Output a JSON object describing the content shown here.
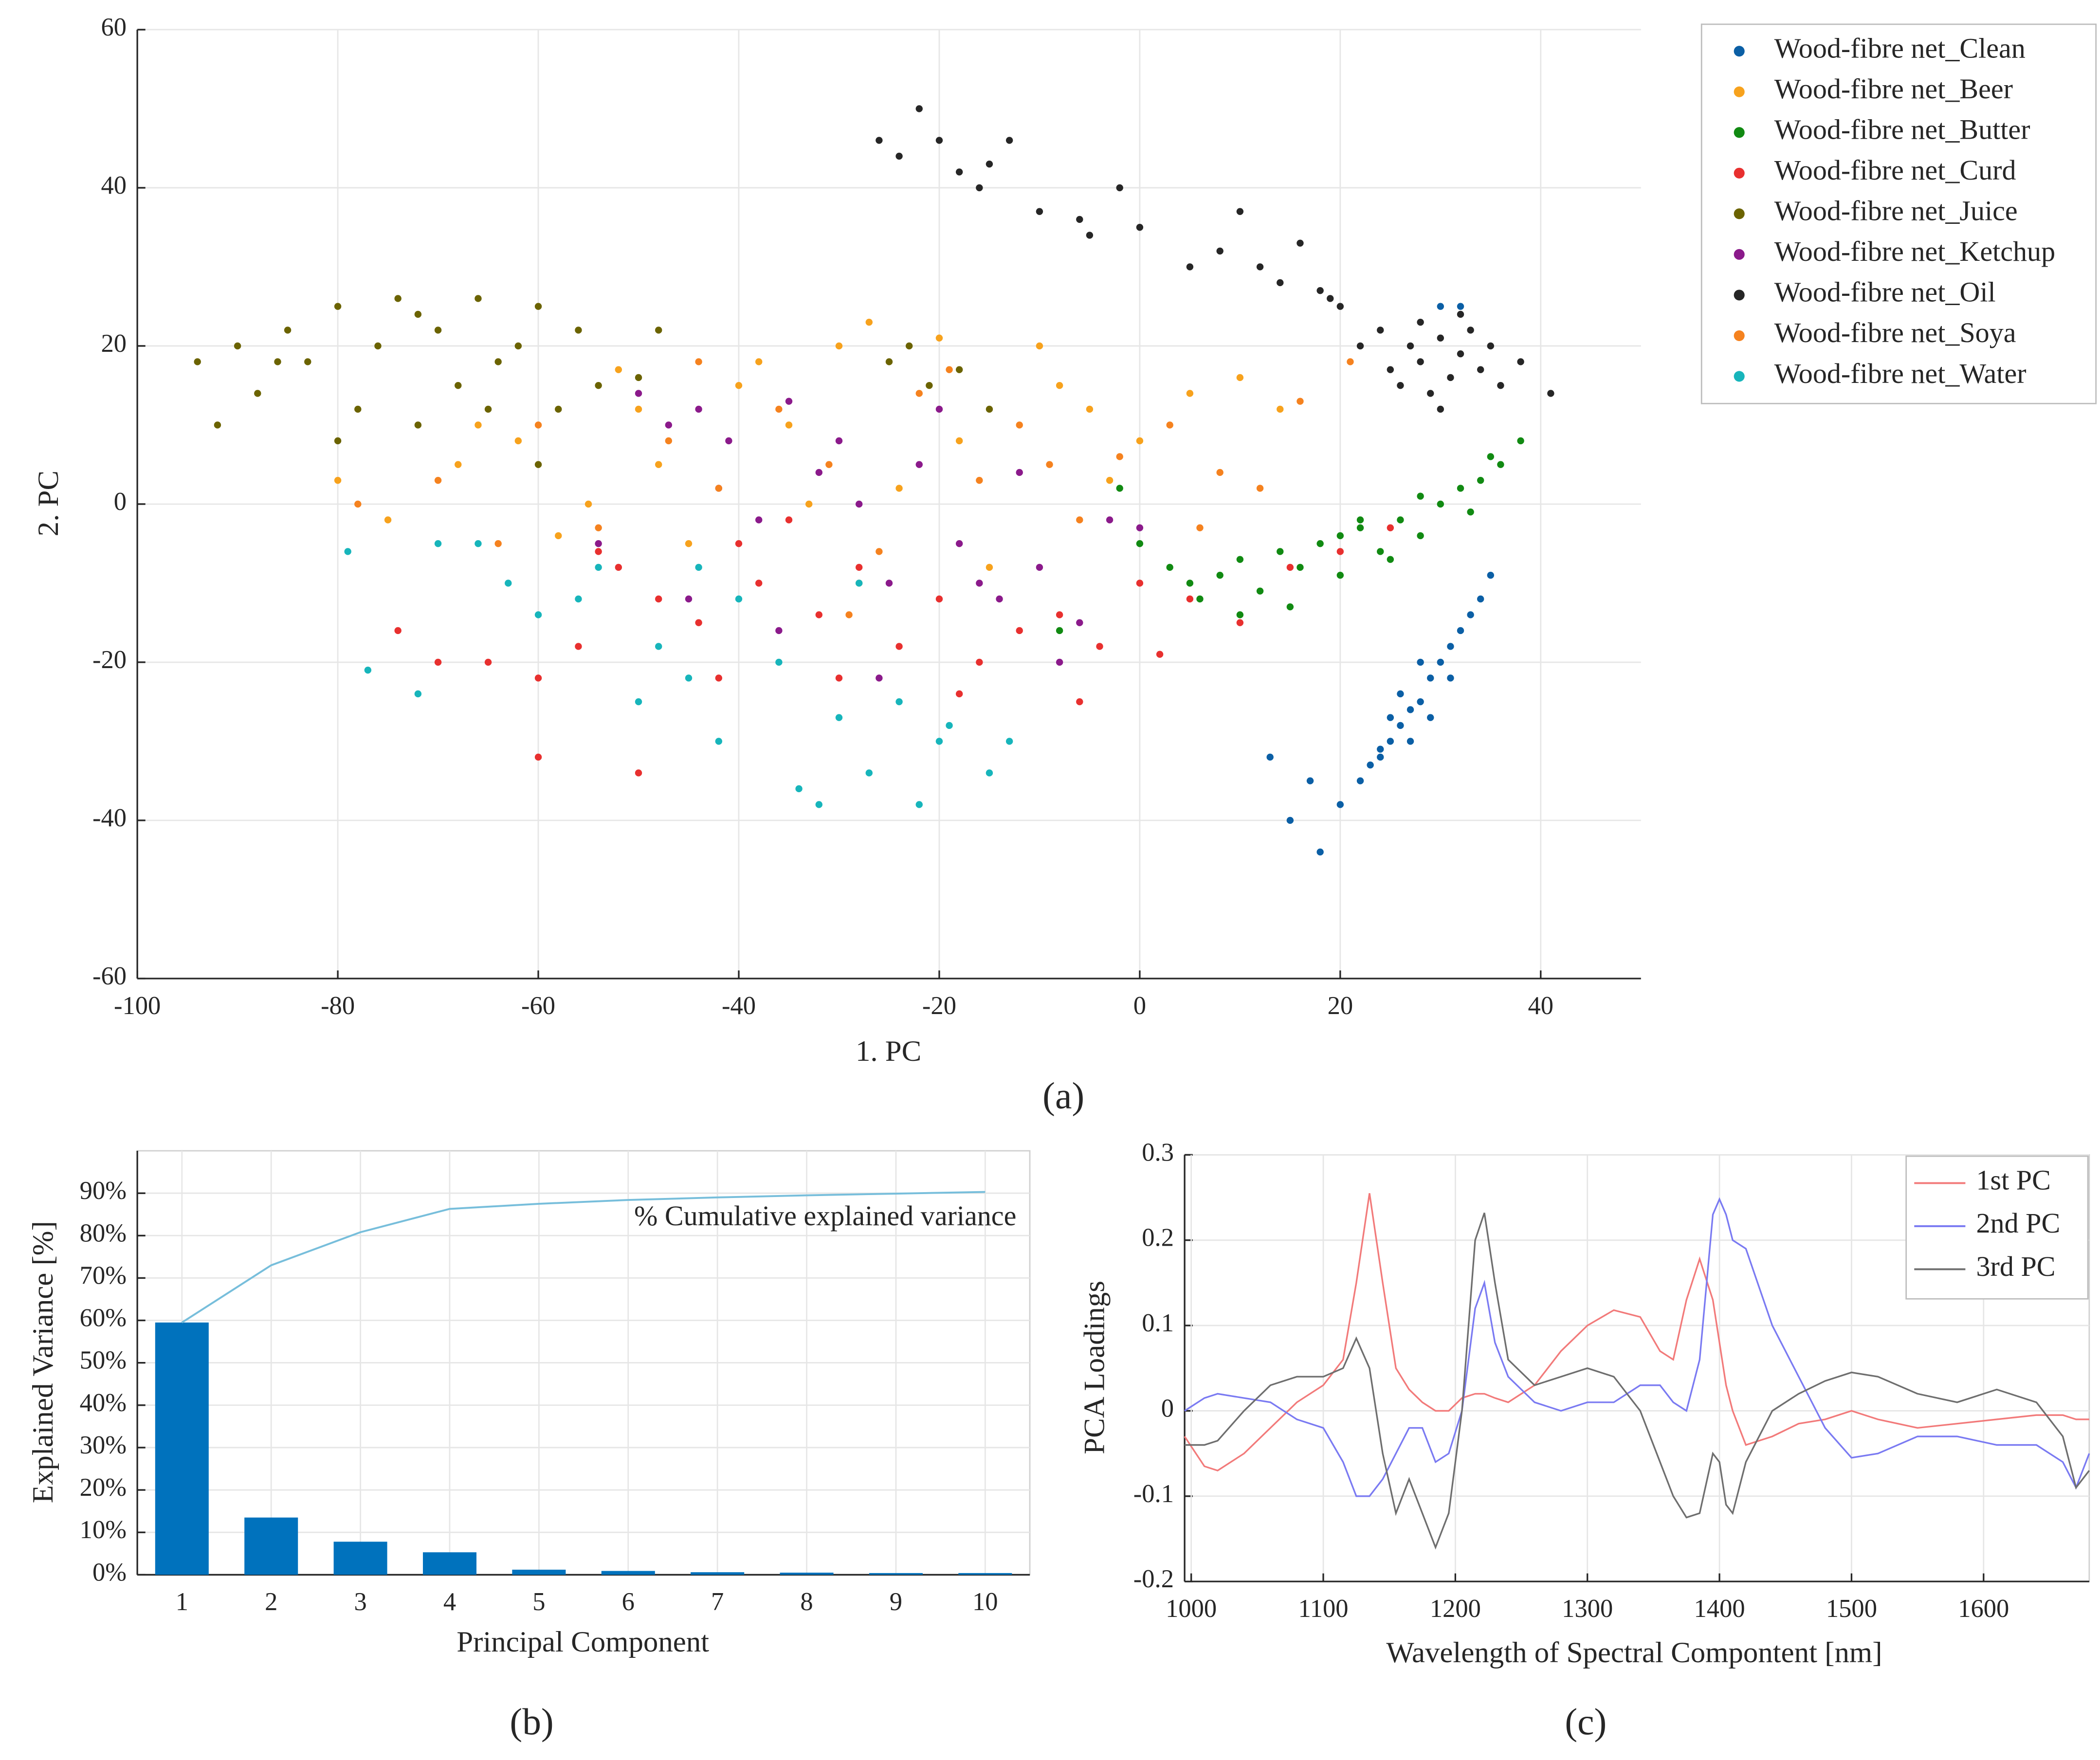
{
  "chart_data": [
    {
      "type": "scatter",
      "caption": "(a)",
      "x_label": "1. PC",
      "y_label": "2. PC",
      "xlim": [
        -100,
        50
      ],
      "ylim": [
        -60,
        60
      ],
      "xticks": [
        -100,
        -80,
        -60,
        -40,
        -20,
        0,
        20,
        40
      ],
      "yticks": [
        -60,
        -40,
        -20,
        0,
        20,
        40,
        60
      ],
      "grid": true,
      "legend": "outside upper right",
      "series": [
        {
          "name": "Wood-fibre net_Clean",
          "color": "#0b5fa5",
          "x": [
            22,
            24,
            25,
            26,
            27,
            28,
            29,
            30,
            31,
            32,
            33,
            34,
            35,
            27,
            29,
            31,
            26,
            24,
            15,
            13,
            18,
            20,
            17,
            30,
            32,
            23,
            28,
            25
          ],
          "values": [
            -35,
            -32,
            -30,
            -28,
            -26,
            -25,
            -22,
            -20,
            -18,
            -16,
            -14,
            -12,
            -9,
            -30,
            -27,
            -22,
            -24,
            -31,
            -40,
            -32,
            -44,
            -38,
            -35,
            25,
            25,
            -33,
            -20,
            -27
          ]
        },
        {
          "name": "Wood-fibre net_Beer",
          "color": "#f7a21d",
          "x": [
            -80,
            -75,
            -68,
            -62,
            -55,
            -50,
            -45,
            -40,
            -35,
            -30,
            -27,
            -24,
            -20,
            -15,
            -10,
            -5,
            0,
            5,
            10,
            14,
            -58,
            -48,
            -38,
            -28,
            -18,
            -8,
            -3,
            -66,
            -52,
            -33
          ],
          "values": [
            3,
            -2,
            5,
            8,
            0,
            12,
            -5,
            15,
            10,
            20,
            23,
            2,
            21,
            -8,
            20,
            12,
            8,
            14,
            16,
            12,
            -4,
            5,
            18,
            -10,
            8,
            15,
            3,
            10,
            17,
            0
          ]
        },
        {
          "name": "Wood-fibre net_Butter",
          "color": "#118a12",
          "x": [
            0,
            3,
            5,
            8,
            10,
            12,
            14,
            16,
            18,
            20,
            22,
            24,
            26,
            28,
            30,
            32,
            34,
            36,
            38,
            6,
            15,
            25,
            33,
            20,
            28,
            35,
            -2,
            -8,
            10,
            22
          ],
          "values": [
            -5,
            -8,
            -10,
            -9,
            -7,
            -11,
            -6,
            -8,
            -5,
            -4,
            -3,
            -6,
            -2,
            -4,
            0,
            2,
            3,
            5,
            8,
            -12,
            -13,
            -7,
            -1,
            -9,
            1,
            6,
            2,
            -16,
            -14,
            -2
          ]
        },
        {
          "name": "Wood-fibre net_Curd",
          "color": "#e8302f",
          "x": [
            -74,
            -70,
            -65,
            -60,
            -60,
            -56,
            -52,
            -50,
            -48,
            -44,
            -40,
            -38,
            -35,
            -32,
            -28,
            -24,
            -20,
            -16,
            -12,
            -8,
            -4,
            0,
            5,
            10,
            15,
            20,
            25,
            -42,
            -30,
            -18,
            -6,
            2,
            -54
          ],
          "values": [
            -16,
            -20,
            -20,
            -22,
            -32,
            -18,
            -8,
            -34,
            -12,
            -15,
            -5,
            -10,
            -2,
            -14,
            -8,
            -18,
            -12,
            -20,
            -16,
            -14,
            -18,
            -10,
            -12,
            -15,
            -8,
            -6,
            -3,
            -22,
            -22,
            -24,
            -25,
            -19,
            -6
          ]
        },
        {
          "name": "Wood-fibre net_Juice",
          "color": "#6b6300",
          "x": [
            -94,
            -92,
            -90,
            -88,
            -85,
            -83,
            -80,
            -78,
            -76,
            -74,
            -72,
            -70,
            -68,
            -66,
            -64,
            -62,
            -60,
            -58,
            -56,
            -54,
            -50,
            -48,
            -25,
            -23,
            -21,
            -18,
            -15,
            -80,
            -86,
            -72,
            -65,
            -60
          ],
          "values": [
            18,
            10,
            20,
            14,
            22,
            18,
            25,
            12,
            20,
            26,
            10,
            22,
            15,
            26,
            18,
            20,
            25,
            12,
            22,
            15,
            16,
            22,
            18,
            20,
            15,
            17,
            12,
            8,
            18,
            24,
            12,
            5
          ]
        },
        {
          "name": "Wood-fibre net_Ketchup",
          "color": "#8b1a8b",
          "x": [
            -54,
            -50,
            -47,
            -44,
            -41,
            -38,
            -35,
            -32,
            -28,
            -25,
            -22,
            -18,
            -14,
            -10,
            -6,
            -3,
            0,
            -45,
            -36,
            -26,
            -16,
            -8,
            -42,
            -30,
            -20,
            -12
          ],
          "values": [
            -5,
            14,
            10,
            12,
            8,
            -2,
            13,
            4,
            0,
            -10,
            5,
            -5,
            -12,
            -8,
            -15,
            -2,
            -3,
            -12,
            -16,
            -22,
            -10,
            -20,
            2,
            8,
            12,
            4
          ]
        },
        {
          "name": "Wood-fibre net_Oil",
          "color": "#262626",
          "x": [
            -26,
            -24,
            -20,
            -18,
            -15,
            -13,
            -10,
            -6,
            -2,
            0,
            5,
            10,
            12,
            14,
            16,
            18,
            20,
            22,
            24,
            25,
            26,
            27,
            28,
            29,
            30,
            31,
            32,
            33,
            34,
            35,
            36,
            38,
            41,
            -16,
            -5,
            8,
            19,
            30,
            28,
            32,
            -22
          ],
          "values": [
            46,
            44,
            46,
            42,
            43,
            46,
            37,
            36,
            40,
            35,
            30,
            37,
            30,
            28,
            33,
            27,
            25,
            20,
            22,
            17,
            15,
            20,
            18,
            14,
            21,
            16,
            19,
            22,
            17,
            20,
            15,
            18,
            14,
            40,
            34,
            32,
            26,
            12,
            23,
            24,
            50
          ]
        },
        {
          "name": "Wood-fibre net_Soya",
          "color": "#f5821f",
          "x": [
            -78,
            -70,
            -60,
            -54,
            -47,
            -42,
            -36,
            -31,
            -26,
            -22,
            -16,
            -12,
            -6,
            -2,
            3,
            8,
            12,
            16,
            21,
            -64,
            -44,
            -29,
            -19,
            -9,
            6
          ],
          "values": [
            0,
            3,
            10,
            -3,
            8,
            2,
            12,
            5,
            -6,
            14,
            3,
            10,
            -2,
            6,
            10,
            4,
            2,
            13,
            18,
            -5,
            18,
            -14,
            17,
            5,
            -3
          ]
        },
        {
          "name": "Wood-fibre net_Water",
          "color": "#17b5bb",
          "x": [
            -79,
            -77,
            -72,
            -70,
            -66,
            -63,
            -60,
            -56,
            -54,
            -50,
            -48,
            -45,
            -42,
            -40,
            -36,
            -34,
            -32,
            -30,
            -27,
            -24,
            -22,
            -19,
            -15,
            -13,
            -44,
            -28,
            -20
          ],
          "values": [
            -6,
            -21,
            -24,
            -5,
            -5,
            -10,
            -14,
            -12,
            -8,
            -25,
            -18,
            -22,
            -30,
            -12,
            -20,
            -36,
            -38,
            -27,
            -34,
            -25,
            -38,
            -28,
            -34,
            -30,
            -8,
            -10,
            -30
          ]
        }
      ]
    },
    {
      "type": "bar",
      "caption": "(b)",
      "x_label": "Principal Component",
      "y_label": "Explained Variance [%]",
      "categories": [
        "1",
        "2",
        "3",
        "4",
        "5",
        "6",
        "7",
        "8",
        "9",
        "10"
      ],
      "values": [
        59.5,
        13.5,
        7.8,
        5.3,
        1.2,
        0.9,
        0.6,
        0.5,
        0.4,
        0.4
      ],
      "color": "#0072bd",
      "line_values": [
        59.5,
        73,
        80.8,
        86.3,
        87.5,
        88.4,
        89,
        89.5,
        89.9,
        90.3
      ],
      "line_color": "#77bedb",
      "annotation": "% Cumulative explained variance",
      "ylim": [
        0,
        100
      ],
      "yticks": [
        {
          "value": 0,
          "label": "0%"
        },
        {
          "value": 10,
          "label": "10%"
        },
        {
          "value": 20,
          "label": "20%"
        },
        {
          "value": 30,
          "label": "30%"
        },
        {
          "value": 40,
          "label": "40%"
        },
        {
          "value": 50,
          "label": "50%"
        },
        {
          "value": 60,
          "label": "60%"
        },
        {
          "value": 70,
          "label": "70%"
        },
        {
          "value": 80,
          "label": "80%"
        },
        {
          "value": 90,
          "label": "90%"
        }
      ],
      "grid": true
    },
    {
      "type": "line",
      "caption": "(c)",
      "x_label": "Wavelength of Spectral Compontent [nm]",
      "y_label": "PCA Loadings",
      "xlim": [
        995,
        1680
      ],
      "ylim": [
        -0.2,
        0.3
      ],
      "xticks": [
        1000,
        1100,
        1200,
        1300,
        1400,
        1500,
        1600
      ],
      "yticks": [
        {
          "value": -0.2,
          "label": "-0.2"
        },
        {
          "value": -0.1,
          "label": "-0.1"
        },
        0,
        0.1,
        0.2,
        0.3
      ],
      "grid": true,
      "legend": "upper right",
      "x": [
        995,
        1010,
        1020,
        1040,
        1060,
        1080,
        1100,
        1115,
        1125,
        1135,
        1145,
        1155,
        1165,
        1175,
        1185,
        1195,
        1205,
        1215,
        1222,
        1230,
        1240,
        1260,
        1280,
        1300,
        1320,
        1340,
        1355,
        1365,
        1375,
        1385,
        1395,
        1400,
        1405,
        1410,
        1420,
        1440,
        1460,
        1480,
        1500,
        1520,
        1550,
        1580,
        1610,
        1640,
        1660,
        1670,
        1680
      ],
      "series": [
        {
          "name": "1st PC",
          "color": "#f27a7a",
          "values": [
            -0.03,
            -0.065,
            -0.07,
            -0.05,
            -0.02,
            0.01,
            0.03,
            0.06,
            0.15,
            0.255,
            0.15,
            0.05,
            0.025,
            0.01,
            0,
            0,
            0.015,
            0.02,
            0.02,
            0.015,
            0.01,
            0.03,
            0.07,
            0.1,
            0.118,
            0.11,
            0.07,
            0.06,
            0.13,
            0.178,
            0.13,
            0.08,
            0.03,
            0,
            -0.04,
            -0.03,
            -0.015,
            -0.01,
            0,
            -0.01,
            -0.02,
            -0.015,
            -0.01,
            -0.005,
            -0.005,
            -0.01,
            -0.01
          ]
        },
        {
          "name": "2nd PC",
          "color": "#7a7af2",
          "values": [
            0,
            0.015,
            0.02,
            0.015,
            0.01,
            -0.01,
            -0.02,
            -0.06,
            -0.1,
            -0.1,
            -0.08,
            -0.05,
            -0.02,
            -0.02,
            -0.06,
            -0.05,
            0,
            0.12,
            0.15,
            0.08,
            0.04,
            0.01,
            0,
            0.01,
            0.01,
            0.03,
            0.03,
            0.01,
            0,
            0.06,
            0.23,
            0.248,
            0.23,
            0.2,
            0.19,
            0.1,
            0.04,
            -0.02,
            -0.055,
            -0.05,
            -0.03,
            -0.03,
            -0.04,
            -0.04,
            -0.06,
            -0.09,
            -0.05
          ]
        },
        {
          "name": "3rd PC",
          "color": "#6e6e6e",
          "values": [
            -0.04,
            -0.04,
            -0.035,
            0,
            0.03,
            0.04,
            0.04,
            0.05,
            0.085,
            0.05,
            -0.05,
            -0.12,
            -0.08,
            -0.12,
            -0.16,
            -0.12,
            0,
            0.2,
            0.232,
            0.15,
            0.06,
            0.03,
            0.04,
            0.05,
            0.04,
            0,
            -0.06,
            -0.1,
            -0.125,
            -0.12,
            -0.05,
            -0.06,
            -0.11,
            -0.12,
            -0.06,
            0,
            0.02,
            0.035,
            0.045,
            0.04,
            0.02,
            0.01,
            0.025,
            0.01,
            -0.03,
            -0.09,
            -0.07
          ]
        }
      ]
    }
  ]
}
